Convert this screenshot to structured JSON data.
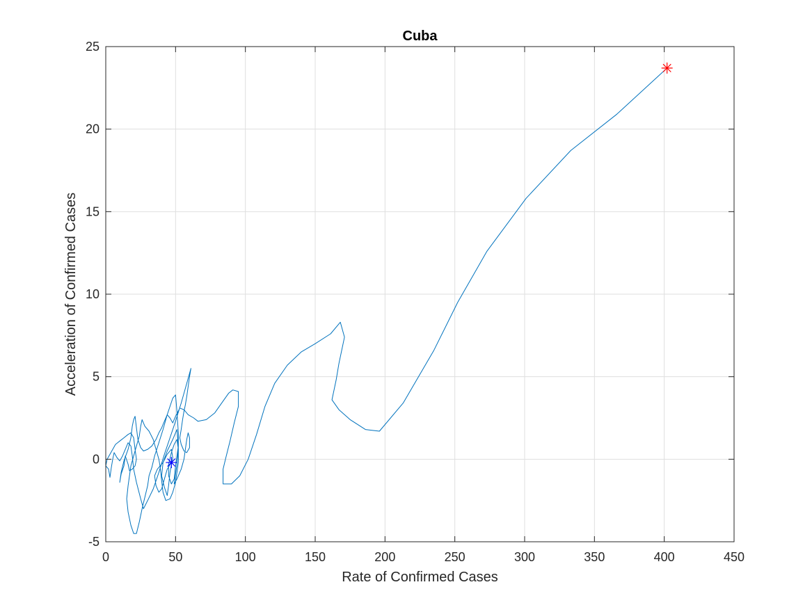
{
  "chart_data": {
    "type": "line",
    "title": "Cuba",
    "xlabel": "Rate of Confirmed Cases",
    "ylabel": "Acceleration of Confirmed Cases",
    "xlim": [
      0,
      450
    ],
    "ylim": [
      -5,
      25
    ],
    "xticks": [
      0,
      50,
      100,
      150,
      200,
      250,
      300,
      350,
      400,
      450
    ],
    "yticks": [
      -5,
      0,
      5,
      10,
      15,
      20,
      25
    ],
    "grid": true,
    "legend": "none",
    "series": [
      {
        "color": "#0072BD",
        "points": [
          [
            47,
            -0.2
          ],
          [
            44,
            -0.6
          ],
          [
            42,
            -1.2
          ],
          [
            40,
            -1.8
          ],
          [
            38,
            -2.0
          ],
          [
            36,
            -1.6
          ],
          [
            35,
            -1.0
          ],
          [
            37,
            -0.6
          ],
          [
            41,
            -0.2
          ],
          [
            44,
            0.3
          ],
          [
            47,
            0.6
          ],
          [
            48,
            0.1
          ],
          [
            46,
            -0.8
          ],
          [
            45,
            -1.6
          ],
          [
            44,
            -2.2
          ],
          [
            42,
            -1.7
          ],
          [
            40,
            -1.0
          ],
          [
            41,
            -0.2
          ],
          [
            44,
            0.5
          ],
          [
            48,
            1.2
          ],
          [
            51,
            1.8
          ],
          [
            52,
            0.8
          ],
          [
            50,
            -0.4
          ],
          [
            49,
            -1.2
          ],
          [
            47,
            -1.5
          ],
          [
            45,
            -1.0
          ],
          [
            45,
            -0.3
          ],
          [
            47,
            0.4
          ],
          [
            49,
            0.9
          ],
          [
            51,
            1.2
          ],
          [
            52,
            0.6
          ],
          [
            52,
            -0.2
          ],
          [
            51,
            -0.8
          ],
          [
            50,
            -1.4
          ],
          [
            48,
            -2.0
          ],
          [
            46,
            -2.4
          ],
          [
            43,
            -2.5
          ],
          [
            41,
            -2.0
          ],
          [
            40,
            -1.3
          ],
          [
            39,
            -0.5
          ],
          [
            38,
            0.0
          ],
          [
            36,
            0.6
          ],
          [
            34,
            1.2
          ],
          [
            31,
            1.7
          ],
          [
            28,
            2.0
          ],
          [
            26,
            2.4
          ],
          [
            25,
            2.0
          ],
          [
            24,
            1.4
          ],
          [
            22,
            0.8
          ],
          [
            20,
            0.2
          ],
          [
            18,
            -0.4
          ],
          [
            17,
            -1.0
          ],
          [
            16,
            -1.6
          ],
          [
            15,
            -2.4
          ],
          [
            16,
            -3.2
          ],
          [
            18,
            -4.0
          ],
          [
            20,
            -4.5
          ],
          [
            22,
            -4.5
          ],
          [
            24,
            -3.8
          ],
          [
            26,
            -3.0
          ],
          [
            28,
            -2.3
          ],
          [
            30,
            -1.6
          ],
          [
            31,
            -1.0
          ],
          [
            33,
            -0.5
          ],
          [
            35,
            0.2
          ],
          [
            38,
            1.0
          ],
          [
            41,
            1.8
          ],
          [
            44,
            2.7
          ],
          [
            46,
            3.2
          ],
          [
            48,
            3.7
          ],
          [
            50,
            3.9
          ],
          [
            51,
            2.9
          ],
          [
            52,
            1.6
          ],
          [
            52,
            0.6
          ],
          [
            51,
            -0.3
          ],
          [
            50,
            -0.9
          ],
          [
            49,
            -1.5
          ],
          [
            51,
            -1.2
          ],
          [
            54,
            -0.6
          ],
          [
            56,
            0.0
          ],
          [
            57,
            0.6
          ],
          [
            58,
            1.2
          ],
          [
            59,
            1.6
          ],
          [
            60,
            1.3
          ],
          [
            60,
            0.7
          ],
          [
            58,
            0.4
          ],
          [
            56,
            0.5
          ],
          [
            54,
            0.9
          ],
          [
            53,
            1.3
          ],
          [
            54,
            1.8
          ],
          [
            55,
            2.4
          ],
          [
            56,
            2.9
          ],
          [
            57,
            3.3
          ],
          [
            58,
            3.8
          ],
          [
            59,
            4.4
          ],
          [
            60,
            5.0
          ],
          [
            61,
            5.5
          ],
          [
            58,
            4.6
          ],
          [
            54,
            3.4
          ],
          [
            50,
            2.3
          ],
          [
            46,
            1.3
          ],
          [
            42,
            0.3
          ],
          [
            38,
            -0.8
          ],
          [
            34,
            -1.8
          ],
          [
            30,
            -2.5
          ],
          [
            27,
            -3.0
          ],
          [
            25,
            -2.4
          ],
          [
            22,
            -1.4
          ],
          [
            20,
            -0.6
          ],
          [
            19,
            0.2
          ],
          [
            18,
            0.8
          ],
          [
            16,
            1.0
          ],
          [
            14,
            0.6
          ],
          [
            12,
            0.2
          ],
          [
            10,
            -0.1
          ],
          [
            8,
            0.1
          ],
          [
            6,
            0.4
          ],
          [
            5,
            0.0
          ],
          [
            4,
            -0.5
          ],
          [
            3,
            -1.1
          ],
          [
            2,
            -0.6
          ],
          [
            0,
            -0.4
          ],
          [
            1,
            0.0
          ],
          [
            3,
            0.3
          ],
          [
            5,
            0.6
          ],
          [
            7,
            0.9
          ],
          [
            10,
            1.1
          ],
          [
            13,
            1.3
          ],
          [
            16,
            1.5
          ],
          [
            18,
            1.6
          ],
          [
            20,
            1.3
          ],
          [
            21,
            0.6
          ],
          [
            22,
            0.0
          ],
          [
            21,
            -0.4
          ],
          [
            19,
            -0.6
          ],
          [
            17,
            -0.7
          ],
          [
            16,
            -0.3
          ],
          [
            14,
            0.2
          ],
          [
            13,
            -0.4
          ],
          [
            11,
            -0.9
          ],
          [
            10,
            -1.4
          ],
          [
            11,
            -0.8
          ],
          [
            13,
            -0.1
          ],
          [
            16,
            0.6
          ],
          [
            18,
            1.3
          ],
          [
            19,
            2.0
          ],
          [
            20,
            2.4
          ],
          [
            21,
            2.6
          ],
          [
            22,
            1.9
          ],
          [
            23,
            1.2
          ],
          [
            25,
            0.7
          ],
          [
            27,
            0.5
          ],
          [
            30,
            0.6
          ],
          [
            33,
            0.8
          ],
          [
            36,
            1.2
          ],
          [
            38,
            1.6
          ],
          [
            40,
            1.9
          ],
          [
            42,
            2.3
          ],
          [
            44,
            2.7
          ],
          [
            46,
            2.5
          ],
          [
            48,
            2.2
          ],
          [
            50,
            2.6
          ],
          [
            53,
            3.1
          ],
          [
            56,
            3.0
          ],
          [
            59,
            2.7
          ],
          [
            63,
            2.5
          ],
          [
            66,
            2.3
          ],
          [
            72,
            2.4
          ],
          [
            78,
            2.8
          ],
          [
            83,
            3.4
          ],
          [
            88,
            4.0
          ],
          [
            91,
            4.2
          ],
          [
            95,
            4.1
          ],
          [
            95,
            3.2
          ],
          [
            92,
            2.2
          ],
          [
            89,
            1.1
          ],
          [
            86,
            0.1
          ],
          [
            84,
            -0.6
          ],
          [
            84,
            -1.2
          ],
          [
            84,
            -1.5
          ],
          [
            90,
            -1.5
          ],
          [
            96,
            -1.0
          ],
          [
            102,
            0.0
          ],
          [
            108,
            1.5
          ],
          [
            114,
            3.2
          ],
          [
            121,
            4.6
          ],
          [
            130,
            5.7
          ],
          [
            140,
            6.5
          ],
          [
            150,
            7.0
          ],
          [
            161,
            7.6
          ],
          [
            168,
            8.3
          ],
          [
            171,
            7.4
          ],
          [
            167,
            5.8
          ],
          [
            165,
            4.8
          ],
          [
            162,
            3.6
          ],
          [
            167,
            3.0
          ],
          [
            175,
            2.4
          ],
          [
            186,
            1.8
          ],
          [
            196,
            1.7
          ],
          [
            213,
            3.4
          ],
          [
            235,
            6.6
          ],
          [
            252,
            9.5
          ],
          [
            273,
            12.6
          ],
          [
            301,
            15.8
          ],
          [
            333,
            18.7
          ],
          [
            366,
            20.9
          ],
          [
            402,
            23.7
          ]
        ]
      }
    ],
    "markers": [
      {
        "label": "start",
        "x": 47,
        "y": -0.2,
        "symbol": "asterisk",
        "color": "#0000FF"
      },
      {
        "label": "end",
        "x": 402,
        "y": 23.7,
        "symbol": "asterisk",
        "color": "#FF0000"
      }
    ]
  }
}
